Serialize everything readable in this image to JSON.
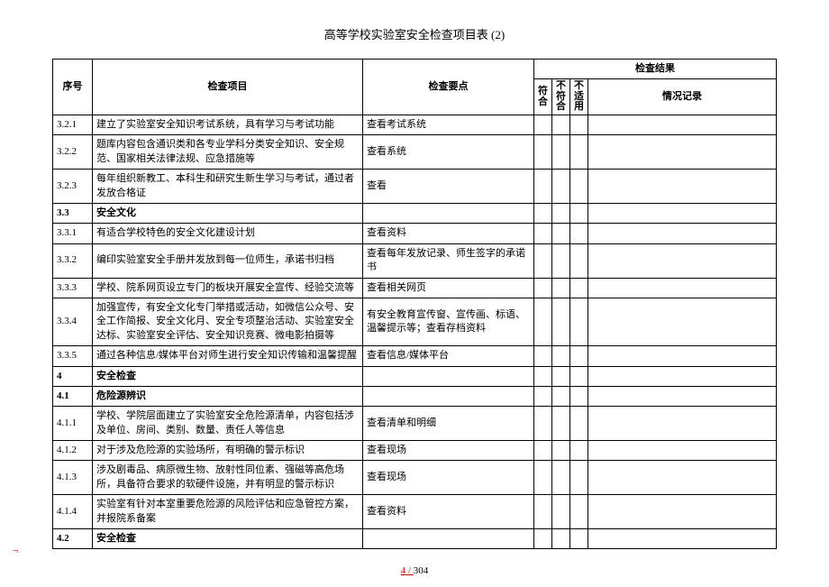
{
  "title": "高等学校实验室安全检查项目表 (2)",
  "headers": {
    "seq": "序号",
    "item": "检查项目",
    "point": "检查要点",
    "result_group": "检查结果",
    "pass": "符合",
    "fail": "不符合",
    "na": "不适用",
    "record": "情况记录"
  },
  "rows": [
    {
      "seq": "3.2.1",
      "item": "建立了实验室安全知识考试系统，具有学习与考试功能",
      "point": "查看考试系统",
      "bold": false
    },
    {
      "seq": "3.2.2",
      "item": "题库内容包含通识类和各专业学科分类安全知识、安全规范、国家相关法律法规、应急措施等",
      "point": "查看系统",
      "bold": false
    },
    {
      "seq": "3.2.3",
      "item": "每年组织新教工、本科生和研究生新生学习与考试，通过者发放合格证",
      "point": "查看",
      "bold": false
    },
    {
      "seq": "3.3",
      "item": "安全文化",
      "point": "",
      "bold": true
    },
    {
      "seq": "3.3.1",
      "item": "有适合学校特色的安全文化建设计划",
      "point": "查看资料",
      "bold": false
    },
    {
      "seq": "3.3.2",
      "item": "编印实验室安全手册并发放到每一位师生，承诺书归档",
      "point": "查看每年发放记录、师生签字的承诺书",
      "bold": false
    },
    {
      "seq": "3.3.3",
      "item": "学校、院系网页设立专门的板块开展安全宣传、经验交流等",
      "point": "查看相关网页",
      "bold": false
    },
    {
      "seq": "3.3.4",
      "item": "加强宣传，有安全文化专门举措或活动，如微信公众号、安全工作简报、安全文化月、安全专项整治活动、实验室安全达标、实验室安全评估、安全知识竞赛、微电影拍摄等",
      "point": "有安全教育宣传窗、宣传画、标语、温馨提示等；查看存档资料",
      "bold": false
    },
    {
      "seq": "3.3.5",
      "item": "通过各种信息/媒体平台对师生进行安全知识传输和温馨提醒",
      "point": "查看信息/媒体平台",
      "bold": false
    },
    {
      "seq": "4",
      "item": "安全检查",
      "point": "",
      "bold": true
    },
    {
      "seq": "4.1",
      "item": "危险源辨识",
      "point": "",
      "bold": true
    },
    {
      "seq": "4.1.1",
      "item": "学校、学院层面建立了实验室安全危险源清单，内容包括涉及单位、房间、类别、数量、责任人等信息",
      "point": "查看清单和明细",
      "bold": false
    },
    {
      "seq": "4.1.2",
      "item": "对于涉及危险源的实验场所，有明确的警示标识",
      "point": "查看现场",
      "bold": false
    },
    {
      "seq": "4.1.3",
      "item": "涉及剧毒品、病原微生物、放射性同位素、强磁等高危场所，具备符合要求的软硬件设施，并有明显的警示标识",
      "point": "查看现场",
      "bold": false
    },
    {
      "seq": "4.1.4",
      "item": "实验室有针对本室重要危险源的风险评估和应急管控方案，并报院系备案",
      "point": "查看资料",
      "bold": false
    },
    {
      "seq": "4.2",
      "item": "安全检查",
      "point": "",
      "bold": true
    }
  ],
  "footer": {
    "current": "4",
    "total": "304",
    "sep": " / "
  },
  "left_mark": "¬"
}
